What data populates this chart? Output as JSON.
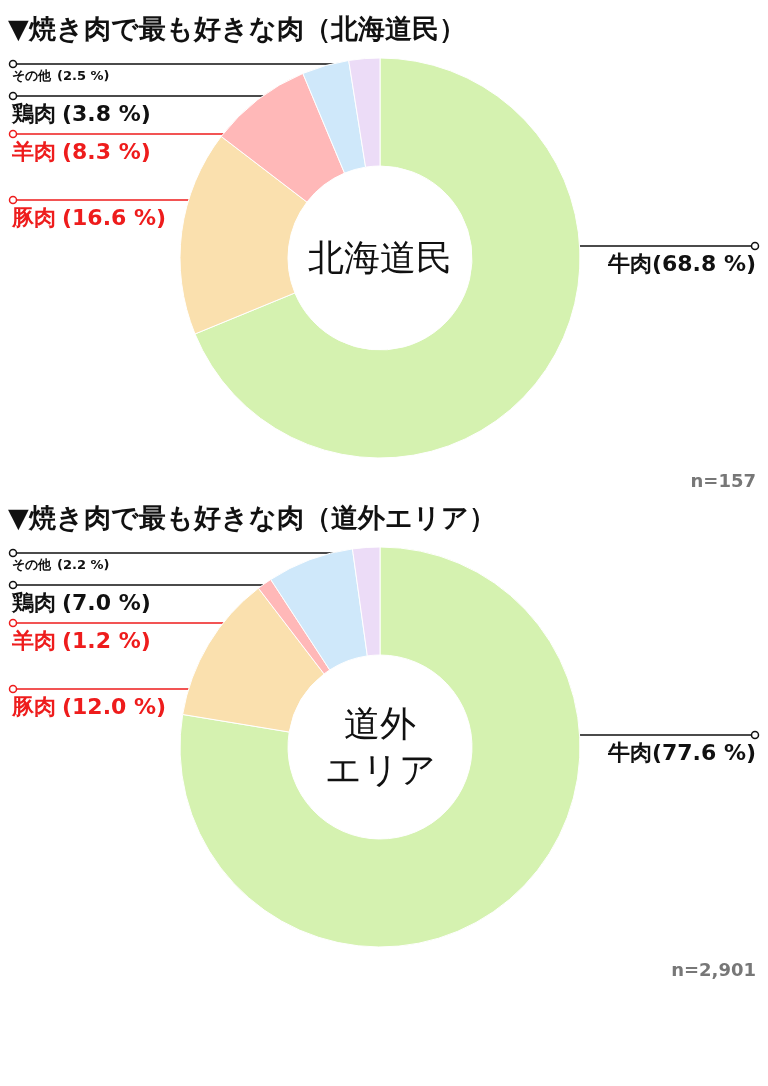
{
  "chart_data": [
    {
      "type": "donut",
      "title": "▼焼き肉で最も好きな肉（北海道民）",
      "categories": [
        "牛肉",
        "豚肉",
        "羊肉",
        "鶏肉",
        "その他"
      ],
      "values": [
        68.8,
        16.6,
        8.3,
        3.8,
        2.5
      ],
      "colors": [
        "#d5f2b0",
        "#fae0ae",
        "#ffb8b8",
        "#cfe8fa",
        "#ecdcf7"
      ],
      "value_labels": [
        "(68.8 %)",
        "(16.6 %)",
        "(8.3 %)",
        "(3.8 %)",
        "(2.5 %)"
      ],
      "legend": false,
      "annotations": [
        "北海道民",
        "n=157"
      ]
    },
    {
      "type": "donut",
      "title": "▼焼き肉で最も好きな肉（道外エリア）",
      "categories": [
        "牛肉",
        "豚肉",
        "羊肉",
        "鶏肉",
        "その他"
      ],
      "values": [
        77.6,
        12.0,
        1.2,
        7.0,
        2.2
      ],
      "colors": [
        "#d5f2b0",
        "#fae0ae",
        "#ffb8b8",
        "#cfe8fa",
        "#ecdcf7"
      ],
      "value_labels": [
        "(77.6 %)",
        "(12.0 %)",
        "(1.2 %)",
        "(7.0 %)",
        "(2.2 %)"
      ],
      "legend": false,
      "annotations": [
        "道外",
        "エリア",
        "n=2,901"
      ]
    }
  ]
}
